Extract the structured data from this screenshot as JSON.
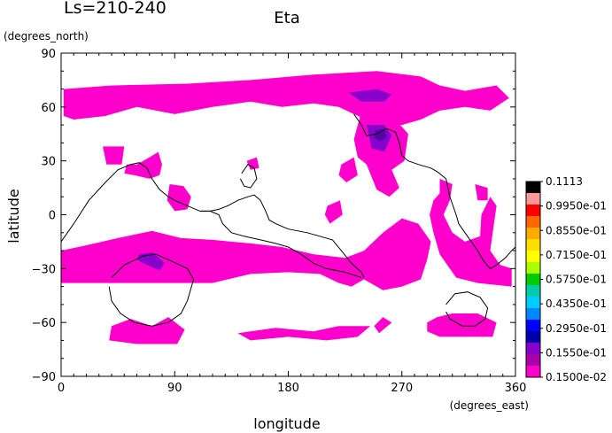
{
  "chart_data": {
    "type": "heatmap",
    "title": "Eta",
    "subtitle": "Ls=210-240",
    "xlabel": "longitude",
    "ylabel": "latitude",
    "xunits": "(degrees_east)",
    "yunits": "(degrees_north)",
    "xlim": [
      0,
      360
    ],
    "ylim": [
      -90,
      90
    ],
    "xticks": [
      0,
      90,
      180,
      270,
      360
    ],
    "yticks": [
      -90,
      -60,
      -30,
      0,
      30,
      60,
      90
    ],
    "colorbar": {
      "labels": [
        "0.1113",
        "0.9950e-01",
        "0.8550e-01",
        "0.7150e-01",
        "0.5750e-01",
        "0.4350e-01",
        "0.2950e-01",
        "0.1550e-01",
        "0.1500e-02"
      ],
      "colors": [
        "#000000",
        "#ff9999",
        "#ff0000",
        "#ff6600",
        "#ffaa00",
        "#ffdd00",
        "#ffff00",
        "#aaff00",
        "#00cc00",
        "#00ccaa",
        "#00ccff",
        "#0088ff",
        "#0000ff",
        "#0000aa",
        "#8800cc",
        "#aa00aa",
        "#ff00cc"
      ],
      "fill_color": "#ff00cc",
      "high_color": "#8800cc",
      "peak_color": "#5500aa"
    },
    "regions": [
      {
        "name": "north-band",
        "level": "low",
        "points": [
          [
            2,
            70
          ],
          [
            40,
            72
          ],
          [
            100,
            73
          ],
          [
            150,
            75
          ],
          [
            200,
            78
          ],
          [
            250,
            80
          ],
          [
            285,
            77
          ],
          [
            300,
            72
          ],
          [
            320,
            69
          ],
          [
            345,
            72
          ],
          [
            355,
            65
          ],
          [
            340,
            58
          ],
          [
            320,
            60
          ],
          [
            300,
            58
          ],
          [
            285,
            53
          ],
          [
            270,
            50
          ],
          [
            245,
            52
          ],
          [
            232,
            56
          ],
          [
            220,
            60
          ],
          [
            200,
            62
          ],
          [
            175,
            60
          ],
          [
            150,
            63
          ],
          [
            120,
            60
          ],
          [
            90,
            56
          ],
          [
            60,
            60
          ],
          [
            35,
            55
          ],
          [
            10,
            53
          ],
          [
            2,
            55
          ]
        ]
      },
      {
        "name": "north-center",
        "level": "high",
        "points": [
          [
            228,
            68
          ],
          [
            250,
            70
          ],
          [
            262,
            67
          ],
          [
            256,
            63
          ],
          [
            238,
            63
          ]
        ]
      },
      {
        "name": "asia-lobe",
        "level": "low",
        "points": [
          [
            237,
            55
          ],
          [
            260,
            57
          ],
          [
            275,
            45
          ],
          [
            272,
            30
          ],
          [
            262,
            25
          ],
          [
            268,
            15
          ],
          [
            260,
            10
          ],
          [
            250,
            14
          ],
          [
            242,
            28
          ],
          [
            235,
            32
          ],
          [
            232,
            42
          ]
        ]
      },
      {
        "name": "asia-high",
        "level": "high",
        "points": [
          [
            242,
            50
          ],
          [
            256,
            50
          ],
          [
            262,
            44
          ],
          [
            256,
            35
          ],
          [
            246,
            37
          ]
        ]
      },
      {
        "name": "asia-peak",
        "level": "peak",
        "points": [
          [
            249,
            47
          ],
          [
            256,
            48
          ],
          [
            258,
            43
          ],
          [
            253,
            41
          ],
          [
            248,
            43
          ]
        ]
      },
      {
        "name": "small-east-blob",
        "level": "low",
        "points": [
          [
            222,
            28
          ],
          [
            232,
            32
          ],
          [
            235,
            22
          ],
          [
            226,
            18
          ],
          [
            220,
            22
          ]
        ]
      },
      {
        "name": "blob-28-40",
        "level": "low",
        "points": [
          [
            33,
            38
          ],
          [
            50,
            38
          ],
          [
            48,
            28
          ],
          [
            36,
            28
          ]
        ]
      },
      {
        "name": "blob-45-70",
        "level": "low",
        "points": [
          [
            52,
            28
          ],
          [
            60,
            28
          ],
          [
            70,
            32
          ],
          [
            77,
            35
          ],
          [
            80,
            28
          ],
          [
            78,
            22
          ],
          [
            70,
            20
          ],
          [
            58,
            22
          ],
          [
            50,
            23
          ]
        ]
      },
      {
        "name": "blob-85-105",
        "level": "low",
        "points": [
          [
            86,
            17
          ],
          [
            97,
            16
          ],
          [
            103,
            10
          ],
          [
            100,
            3
          ],
          [
            90,
            2
          ],
          [
            84,
            8
          ]
        ]
      },
      {
        "name": "blob-152",
        "level": "low",
        "points": [
          [
            147,
            30
          ],
          [
            155,
            32
          ],
          [
            157,
            26
          ],
          [
            150,
            25
          ]
        ]
      },
      {
        "name": "blob-215",
        "level": "low",
        "points": [
          [
            211,
            5
          ],
          [
            221,
            8
          ],
          [
            223,
            0
          ],
          [
            213,
            -5
          ],
          [
            209,
            0
          ]
        ]
      },
      {
        "name": "east-shape",
        "level": "low",
        "points": [
          [
            300,
            20
          ],
          [
            310,
            17
          ],
          [
            308,
            8
          ],
          [
            303,
            0
          ],
          [
            310,
            -10
          ],
          [
            320,
            -15
          ],
          [
            332,
            -12
          ],
          [
            333,
            0
          ],
          [
            340,
            10
          ],
          [
            345,
            5
          ],
          [
            342,
            -10
          ],
          [
            340,
            -20
          ],
          [
            348,
            -28
          ],
          [
            357,
            -30
          ],
          [
            357,
            -40
          ],
          [
            330,
            -38
          ],
          [
            313,
            -35
          ],
          [
            300,
            -22
          ],
          [
            295,
            -10
          ],
          [
            292,
            0
          ],
          [
            295,
            8
          ],
          [
            300,
            12
          ]
        ]
      },
      {
        "name": "east-tip",
        "level": "low",
        "points": [
          [
            328,
            17
          ],
          [
            338,
            15
          ],
          [
            338,
            8
          ],
          [
            330,
            8
          ]
        ]
      },
      {
        "name": "south-band-west",
        "level": "low",
        "points": [
          [
            0,
            -20
          ],
          [
            20,
            -17
          ],
          [
            45,
            -13
          ],
          [
            72,
            -9
          ],
          [
            95,
            -13
          ],
          [
            120,
            -14
          ],
          [
            150,
            -16
          ],
          [
            175,
            -18
          ],
          [
            200,
            -22
          ],
          [
            225,
            -24
          ],
          [
            240,
            -20
          ],
          [
            255,
            -10
          ],
          [
            270,
            -2
          ],
          [
            283,
            -5
          ],
          [
            293,
            -15
          ],
          [
            290,
            -25
          ],
          [
            285,
            -36
          ],
          [
            270,
            -40
          ],
          [
            255,
            -42
          ],
          [
            240,
            -36
          ],
          [
            230,
            -40
          ],
          [
            220,
            -38
          ],
          [
            205,
            -33
          ],
          [
            180,
            -32
          ],
          [
            150,
            -33
          ],
          [
            120,
            -38
          ],
          [
            90,
            -38
          ],
          [
            60,
            -38
          ],
          [
            30,
            -38
          ],
          [
            0,
            -38
          ]
        ]
      },
      {
        "name": "south-high",
        "level": "high",
        "points": [
          [
            62,
            -22
          ],
          [
            73,
            -21
          ],
          [
            82,
            -27
          ],
          [
            78,
            -31
          ],
          [
            68,
            -28
          ],
          [
            60,
            -25
          ]
        ]
      },
      {
        "name": "south-blob-left",
        "level": "low",
        "points": [
          [
            40,
            -62
          ],
          [
            55,
            -58
          ],
          [
            72,
            -62
          ],
          [
            85,
            -57
          ],
          [
            98,
            -64
          ],
          [
            92,
            -72
          ],
          [
            60,
            -72
          ],
          [
            38,
            -70
          ]
        ]
      },
      {
        "name": "south-band-mid",
        "level": "low",
        "points": [
          [
            140,
            -66
          ],
          [
            170,
            -63
          ],
          [
            200,
            -65
          ],
          [
            220,
            -62
          ],
          [
            245,
            -62
          ],
          [
            235,
            -68
          ],
          [
            210,
            -70
          ],
          [
            180,
            -68
          ],
          [
            150,
            -70
          ]
        ]
      },
      {
        "name": "south-blob-east",
        "level": "low",
        "points": [
          [
            290,
            -60
          ],
          [
            298,
            -57
          ],
          [
            310,
            -55
          ],
          [
            330,
            -55
          ],
          [
            345,
            -60
          ],
          [
            342,
            -68
          ],
          [
            300,
            -68
          ],
          [
            290,
            -65
          ]
        ]
      },
      {
        "name": "south-blob-sw",
        "level": "low",
        "points": [
          [
            248,
            -62
          ],
          [
            255,
            -57
          ],
          [
            262,
            -60
          ],
          [
            252,
            -66
          ]
        ]
      }
    ],
    "contours": [
      {
        "name": "dichotomy-west",
        "points": [
          [
            0,
            -15
          ],
          [
            10,
            -5
          ],
          [
            22,
            8
          ],
          [
            35,
            18
          ],
          [
            45,
            25
          ],
          [
            55,
            28
          ],
          [
            62,
            29
          ],
          [
            68,
            26
          ],
          [
            72,
            20
          ],
          [
            78,
            14
          ],
          [
            85,
            10
          ],
          [
            90,
            8
          ],
          [
            100,
            5
          ],
          [
            110,
            2
          ],
          [
            118,
            2
          ],
          [
            125,
            3
          ],
          [
            132,
            5
          ],
          [
            140,
            8
          ],
          [
            148,
            10
          ],
          [
            153,
            11
          ],
          [
            158,
            8
          ],
          [
            162,
            2
          ],
          [
            165,
            -3
          ],
          [
            170,
            -5
          ],
          [
            180,
            -8
          ],
          [
            195,
            -10
          ],
          [
            205,
            -12
          ],
          [
            215,
            -14
          ],
          [
            222,
            -20
          ],
          [
            230,
            -27
          ],
          [
            238,
            -32
          ],
          [
            240,
            -35
          ]
        ]
      },
      {
        "name": "dichotomy-central",
        "points": [
          [
            110,
            2
          ],
          [
            118,
            2
          ],
          [
            125,
            0
          ],
          [
            128,
            -5
          ],
          [
            135,
            -10
          ],
          [
            145,
            -12
          ],
          [
            158,
            -14
          ],
          [
            170,
            -16
          ],
          [
            180,
            -18
          ],
          [
            190,
            -22
          ],
          [
            200,
            -27
          ],
          [
            210,
            -30
          ],
          [
            225,
            -32
          ],
          [
            238,
            -35
          ]
        ]
      },
      {
        "name": "blob-eu",
        "points": [
          [
            232,
            56
          ],
          [
            238,
            50
          ],
          [
            242,
            44
          ],
          [
            250,
            45
          ],
          [
            258,
            48
          ],
          [
            265,
            46
          ],
          [
            268,
            40
          ],
          [
            270,
            33
          ],
          [
            275,
            30
          ],
          [
            283,
            28
          ],
          [
            293,
            26
          ],
          [
            298,
            24
          ],
          [
            305,
            20
          ],
          [
            308,
            10
          ]
        ]
      },
      {
        "name": "east-curve",
        "points": [
          [
            308,
            10
          ],
          [
            313,
            0
          ],
          [
            315,
            -5
          ],
          [
            320,
            -10
          ],
          [
            325,
            -15
          ],
          [
            330,
            -20
          ],
          [
            335,
            -26
          ],
          [
            340,
            -30
          ],
          [
            345,
            -28
          ],
          [
            352,
            -24
          ],
          [
            357,
            -20
          ],
          [
            360,
            -18
          ]
        ]
      },
      {
        "name": "crater-left",
        "points": [
          [
            40,
            -35
          ],
          [
            50,
            -28
          ],
          [
            65,
            -23
          ],
          [
            75,
            -22
          ],
          [
            88,
            -26
          ],
          [
            100,
            -30
          ],
          [
            105,
            -36
          ],
          [
            100,
            -48
          ],
          [
            95,
            -55
          ],
          [
            85,
            -60
          ],
          [
            72,
            -62
          ],
          [
            58,
            -60
          ],
          [
            47,
            -55
          ],
          [
            40,
            -48
          ],
          [
            38,
            -40
          ]
        ]
      },
      {
        "name": "crater-small-north",
        "points": [
          [
            143,
            23
          ],
          [
            148,
            28
          ],
          [
            153,
            26
          ],
          [
            155,
            20
          ],
          [
            150,
            15
          ],
          [
            145,
            16
          ],
          [
            142,
            20
          ]
        ]
      },
      {
        "name": "crater-east",
        "points": [
          [
            305,
            -50
          ],
          [
            312,
            -44
          ],
          [
            322,
            -43
          ],
          [
            332,
            -46
          ],
          [
            338,
            -52
          ],
          [
            336,
            -58
          ],
          [
            328,
            -62
          ],
          [
            318,
            -62
          ],
          [
            308,
            -58
          ],
          [
            305,
            -54
          ]
        ]
      }
    ]
  }
}
